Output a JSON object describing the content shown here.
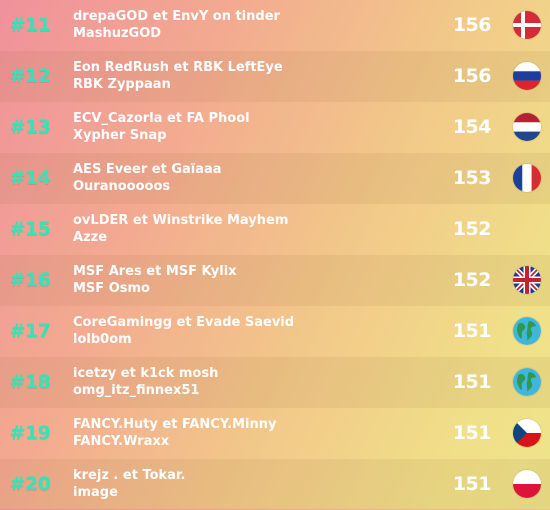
{
  "leaderboard": {
    "rows": [
      {
        "rank": "#11",
        "line1": "drepaGOD et EnvY on tinder",
        "line2": "MashuzGOD",
        "score": "156",
        "flag": "denmark-flag-icon"
      },
      {
        "rank": "#12",
        "line1": "Eon RedRush et RBK LeftEye",
        "line2": "RBK Zyppaan",
        "score": "156",
        "flag": "russia-flag-icon"
      },
      {
        "rank": "#13",
        "line1": "ECV_Cazorla et FA Phool",
        "line2": "Xypher Snap",
        "score": "154",
        "flag": "netherlands-flag-icon"
      },
      {
        "rank": "#14",
        "line1": "AES Eveer et Gaïaaa",
        "line2": "Ouranooooos",
        "score": "153",
        "flag": "france-flag-icon"
      },
      {
        "rank": "#15",
        "line1": "ovLDER et Winstrike Mayhem",
        "line2": "Azze",
        "score": "152",
        "flag": ""
      },
      {
        "rank": "#16",
        "line1": "MSF Ares et MSF Kylix",
        "line2": "MSF Osmo",
        "score": "152",
        "flag": "uk-flag-icon"
      },
      {
        "rank": "#17",
        "line1": "CoreGamingg et Evade Saevid",
        "line2": "lolb0om",
        "score": "151",
        "flag": "globe-icon"
      },
      {
        "rank": "#18",
        "line1": "icetzy et k1ck mosh",
        "line2": "omg_itz_finnex51",
        "score": "151",
        "flag": "globe-icon"
      },
      {
        "rank": "#19",
        "line1": "FANCY.Huty et FANCY.Minny",
        "line2": "FANCY.Wraxx",
        "score": "151",
        "flag": "czech-flag-icon"
      },
      {
        "rank": "#20",
        "line1": "krejz . et Tokar.",
        "line2": "image",
        "score": "151",
        "flag": "poland-flag-icon"
      }
    ]
  },
  "colors": {
    "rank": "#2ee6b8",
    "text": "#ffffff"
  }
}
